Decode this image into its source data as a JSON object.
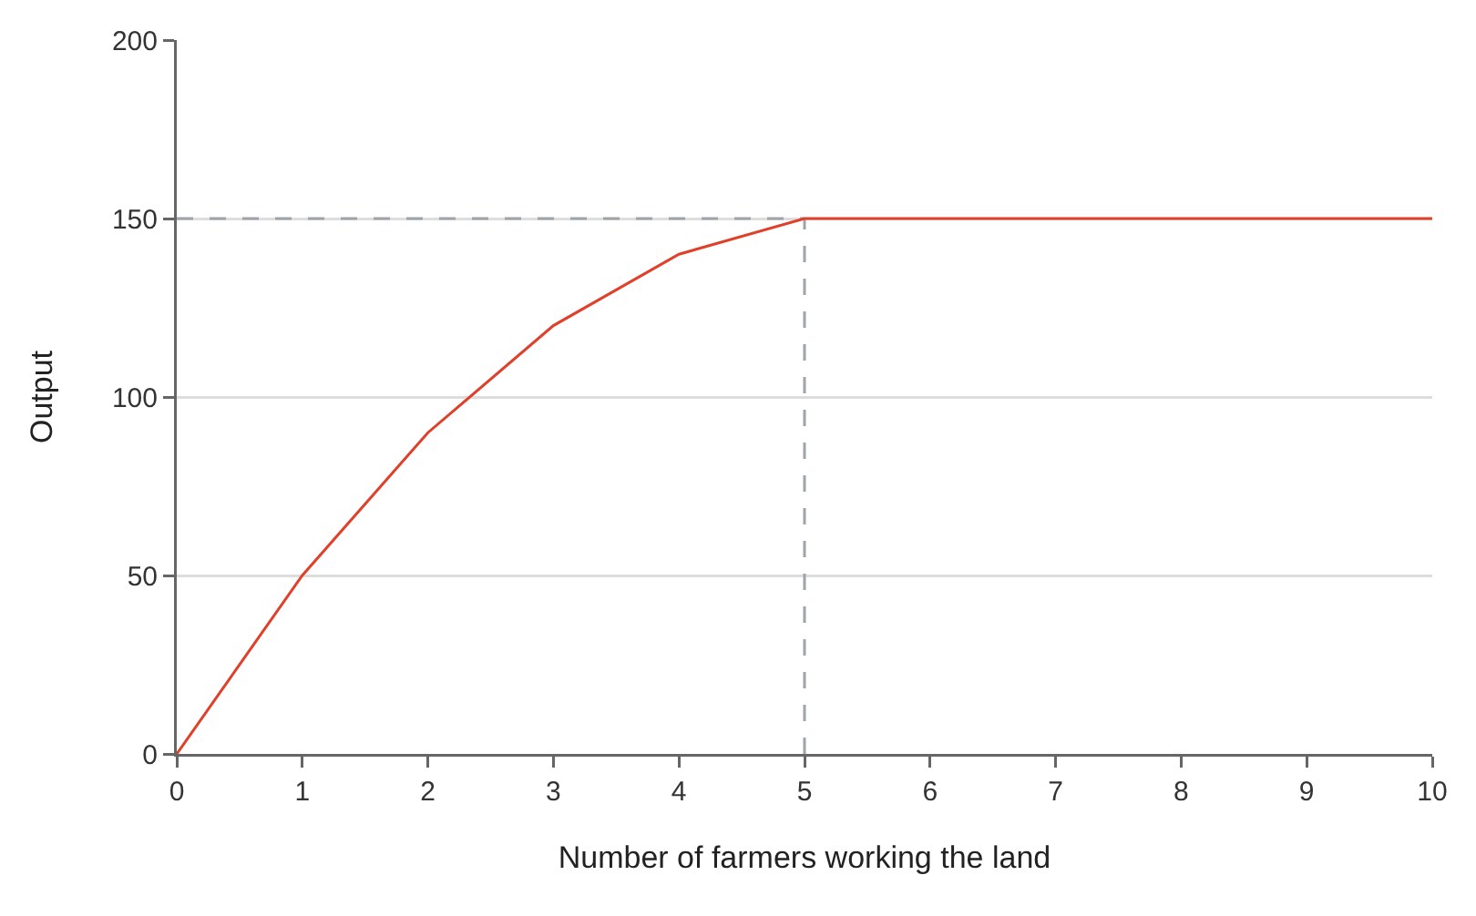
{
  "chart_data": {
    "type": "line",
    "xlabel": "Number of farmers working the land",
    "ylabel": "Output",
    "xlim": [
      0,
      10
    ],
    "xticks": [
      0,
      1,
      2,
      3,
      4,
      5,
      6,
      7,
      8,
      9,
      10
    ],
    "ylim": [
      0,
      200
    ],
    "yticks": [
      0,
      50,
      100,
      150,
      200
    ],
    "grid": "y",
    "series": [
      {
        "color": "#9ea4aa",
        "line_style": "dashed",
        "x": [
          0,
          5
        ],
        "values": [
          150,
          150
        ]
      },
      {
        "color": "#9ea4aa",
        "line_style": "dashed",
        "x": [
          5,
          5
        ],
        "values": [
          0,
          150
        ]
      },
      {
        "color": "#e0402a",
        "line_style": "solid",
        "x": [
          0,
          1,
          2,
          3,
          4,
          5,
          6,
          7,
          8,
          9,
          10
        ],
        "values": [
          0,
          50,
          90,
          120,
          140,
          150,
          150,
          150,
          150,
          150,
          150
        ]
      }
    ]
  }
}
